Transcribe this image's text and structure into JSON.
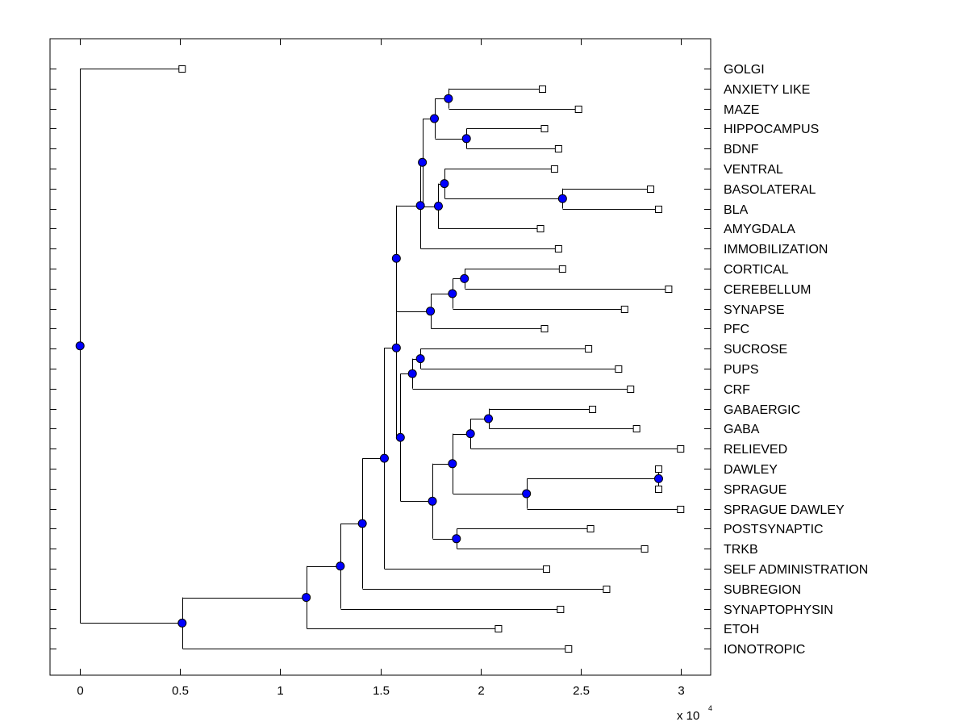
{
  "chart_data": {
    "type": "dendrogram",
    "title": "",
    "xlabel": "",
    "ylabel": "",
    "x_multiplier_label": "x 10",
    "x_multiplier_exponent": "4",
    "xlim": [
      -0.15,
      3.15
    ],
    "x_ticks": [
      {
        "value": 0,
        "label": "0"
      },
      {
        "value": 0.5,
        "label": "0.5"
      },
      {
        "value": 1,
        "label": "1"
      },
      {
        "value": 1.5,
        "label": "1.5"
      },
      {
        "value": 2,
        "label": "2"
      },
      {
        "value": 2.5,
        "label": "2.5"
      },
      {
        "value": 3,
        "label": "3"
      }
    ],
    "grid": false,
    "node_color": "#0000ff",
    "leaves": [
      {
        "name": "GOLGI",
        "x": 0.51
      },
      {
        "name": "ANXIETY LIKE",
        "x": 2.31
      },
      {
        "name": "MAZE",
        "x": 2.49
      },
      {
        "name": "HIPPOCAMPUS",
        "x": 2.32
      },
      {
        "name": "BDNF",
        "x": 2.39
      },
      {
        "name": "VENTRAL",
        "x": 2.37
      },
      {
        "name": "BASOLATERAL",
        "x": 2.85
      },
      {
        "name": "BLA",
        "x": 2.89
      },
      {
        "name": "AMYGDALA",
        "x": 2.3
      },
      {
        "name": "IMMOBILIZATION",
        "x": 2.39
      },
      {
        "name": "CORTICAL",
        "x": 2.41
      },
      {
        "name": "CEREBELLUM",
        "x": 2.94
      },
      {
        "name": "SYNAPSE",
        "x": 2.72
      },
      {
        "name": "PFC",
        "x": 2.32
      },
      {
        "name": "SUCROSE",
        "x": 2.54
      },
      {
        "name": "PUPS",
        "x": 2.69
      },
      {
        "name": "CRF",
        "x": 2.75
      },
      {
        "name": "GABAERGIC",
        "x": 2.56
      },
      {
        "name": "GABA",
        "x": 2.78
      },
      {
        "name": "RELIEVED",
        "x": 3.0
      },
      {
        "name": "DAWLEY",
        "x": 2.89
      },
      {
        "name": "SPRAGUE",
        "x": 2.89
      },
      {
        "name": "SPRAGUE DAWLEY",
        "x": 3.0
      },
      {
        "name": "POSTSYNAPTIC",
        "x": 2.55
      },
      {
        "name": "TRKB",
        "x": 2.82
      },
      {
        "name": "SELF ADMINISTRATION",
        "x": 2.33
      },
      {
        "name": "SUBREGION",
        "x": 2.63
      },
      {
        "name": "SYNAPTOPHYSIN",
        "x": 2.4
      },
      {
        "name": "ETOH",
        "x": 2.09
      },
      {
        "name": "IONOTROPIC",
        "x": 2.44
      }
    ],
    "nodes": [
      {
        "id": "n_anx_maze",
        "x": 1.84,
        "children": [
          "L:ANXIETY LIKE",
          "L:MAZE"
        ]
      },
      {
        "id": "n_hip_bdnf",
        "x": 1.93,
        "children": [
          "L:HIPPOCAMPUS",
          "L:BDNF"
        ]
      },
      {
        "id": "n_top4",
        "x": 1.77,
        "children": [
          "N:n_anx_maze",
          "N:n_hip_bdnf"
        ]
      },
      {
        "id": "n_baso_bla",
        "x": 2.41,
        "children": [
          "L:BASOLATERAL",
          "L:BLA"
        ]
      },
      {
        "id": "n_ventral",
        "x": 1.82,
        "children": [
          "L:VENTRAL",
          "N:n_baso_bla"
        ]
      },
      {
        "id": "n_amyg",
        "x": 1.79,
        "children": [
          "N:n_ventral",
          "L:AMYGDALA"
        ]
      },
      {
        "id": "n_top8",
        "x": 1.71,
        "children": [
          "N:n_top4",
          "N:n_amyg"
        ]
      },
      {
        "id": "n_immob",
        "x": 1.7,
        "children": [
          "N:n_top8",
          "L:IMMOBILIZATION"
        ]
      },
      {
        "id": "n_cort_cereb",
        "x": 1.92,
        "children": [
          "L:CORTICAL",
          "L:CEREBELLUM"
        ]
      },
      {
        "id": "n_synapse",
        "x": 1.86,
        "children": [
          "N:n_cort_cereb",
          "L:SYNAPSE"
        ]
      },
      {
        "id": "n_pfc",
        "x": 1.75,
        "children": [
          "N:n_synapse",
          "L:PFC"
        ]
      },
      {
        "id": "n_upper",
        "x": 1.58,
        "children": [
          "N:n_immob",
          "N:n_pfc"
        ]
      },
      {
        "id": "n_suc_pups",
        "x": 1.7,
        "children": [
          "L:SUCROSE",
          "L:PUPS"
        ]
      },
      {
        "id": "n_crf",
        "x": 1.66,
        "children": [
          "N:n_suc_pups",
          "L:CRF"
        ]
      },
      {
        "id": "n_gaba",
        "x": 2.04,
        "children": [
          "L:GABAERGIC",
          "L:GABA"
        ]
      },
      {
        "id": "n_relieved",
        "x": 1.95,
        "children": [
          "N:n_gaba",
          "L:RELIEVED"
        ]
      },
      {
        "id": "n_daw_spr",
        "x": 2.89,
        "children": [
          "L:DAWLEY",
          "L:SPRAGUE"
        ]
      },
      {
        "id": "n_spr_daw",
        "x": 2.23,
        "children": [
          "N:n_daw_spr",
          "L:SPRAGUE DAWLEY"
        ]
      },
      {
        "id": "n_mid5",
        "x": 1.86,
        "children": [
          "N:n_relieved",
          "N:n_spr_daw"
        ]
      },
      {
        "id": "n_post_trkb",
        "x": 1.88,
        "children": [
          "L:POSTSYNAPTIC",
          "L:TRKB"
        ]
      },
      {
        "id": "n_lower7",
        "x": 1.76,
        "children": [
          "N:n_mid5",
          "N:n_post_trkb"
        ]
      },
      {
        "id": "n_middle",
        "x": 1.6,
        "children": [
          "N:n_crf",
          "N:n_lower7"
        ]
      },
      {
        "id": "n_main",
        "x": 1.58,
        "children": [
          "N:n_upper",
          "N:n_middle"
        ]
      },
      {
        "id": "n_selfadmin",
        "x": 1.52,
        "children": [
          "N:n_main",
          "L:SELF ADMINISTRATION"
        ]
      },
      {
        "id": "n_subregion",
        "x": 1.41,
        "children": [
          "N:n_selfadmin",
          "L:SUBREGION"
        ]
      },
      {
        "id": "n_synaptophysin",
        "x": 1.3,
        "children": [
          "N:n_subregion",
          "L:SYNAPTOPHYSIN"
        ]
      },
      {
        "id": "n_etoh",
        "x": 1.13,
        "children": [
          "N:n_synaptophysin",
          "L:ETOH"
        ]
      },
      {
        "id": "n_ionotropic",
        "x": 0.51,
        "children": [
          "N:n_etoh",
          "L:IONOTROPIC"
        ]
      },
      {
        "id": "n_root",
        "x": 0.0,
        "children": [
          "L:GOLGI",
          "N:n_ionotropic"
        ]
      }
    ]
  }
}
